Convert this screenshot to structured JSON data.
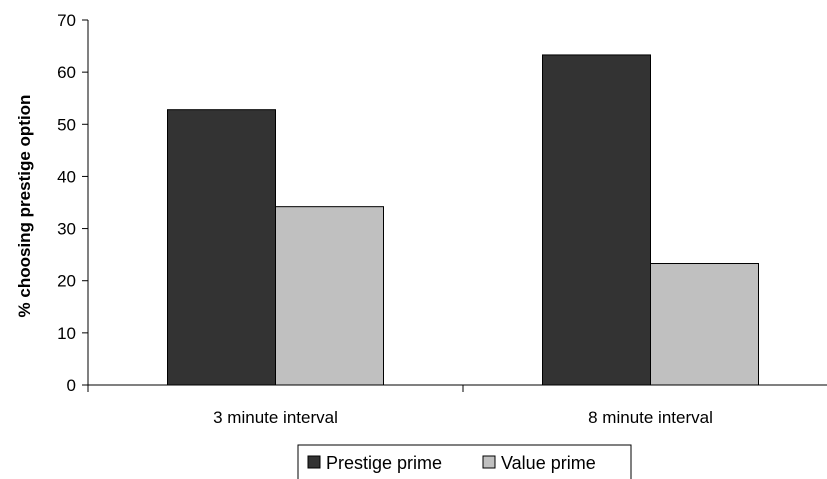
{
  "chart_data": {
    "type": "bar",
    "title": "",
    "xlabel": "",
    "ylabel": "% choosing prestige option",
    "ylim": [
      0,
      70
    ],
    "yticks": [
      0,
      10,
      20,
      30,
      40,
      50,
      60,
      70
    ],
    "categories": [
      "3 minute interval",
      "8 minute interval"
    ],
    "series": [
      {
        "name": "Prestige prime",
        "color": "#333333",
        "values": [
          52.8,
          63.3
        ]
      },
      {
        "name": "Value prime",
        "color": "#c0c0c0",
        "values": [
          34.2,
          23.3
        ]
      }
    ],
    "grid": false,
    "legend_position": "bottom-center"
  }
}
